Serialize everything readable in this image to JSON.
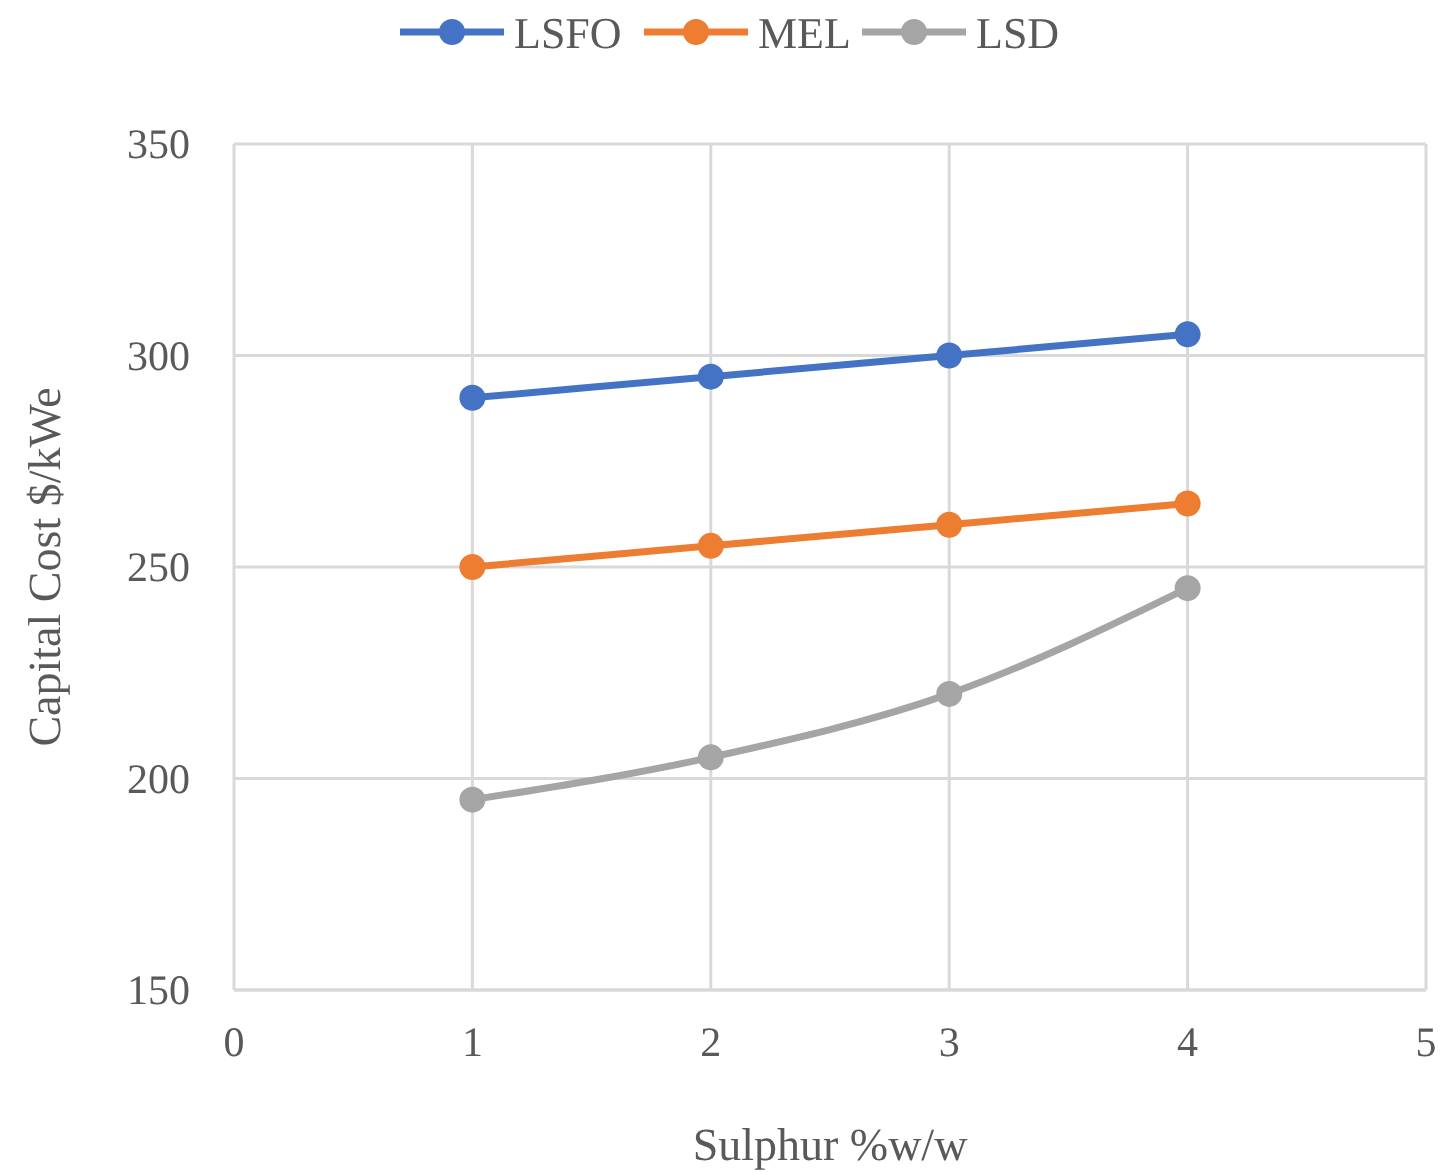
{
  "chart_data": {
    "type": "line",
    "xlabel": "Sulphur %w/w",
    "ylabel": "Capital Cost $/kWe",
    "x": [
      1,
      2,
      3,
      4
    ],
    "series": [
      {
        "name": "LSFO",
        "color": "#4472c4",
        "values": [
          290,
          295,
          300,
          305
        ]
      },
      {
        "name": "MEL",
        "color": "#ed7d31",
        "values": [
          250,
          255,
          260,
          265
        ]
      },
      {
        "name": "LSD",
        "color": "#a5a5a5",
        "values": [
          195,
          205,
          220,
          245
        ]
      }
    ],
    "xlim": [
      0,
      5
    ],
    "xticks": [
      0,
      1,
      2,
      3,
      4,
      5
    ],
    "ylim": [
      150,
      350
    ],
    "yticks": [
      150,
      200,
      250,
      300,
      350
    ],
    "grid": true,
    "legend": "top",
    "marker": "circle",
    "line_style": "solid"
  }
}
